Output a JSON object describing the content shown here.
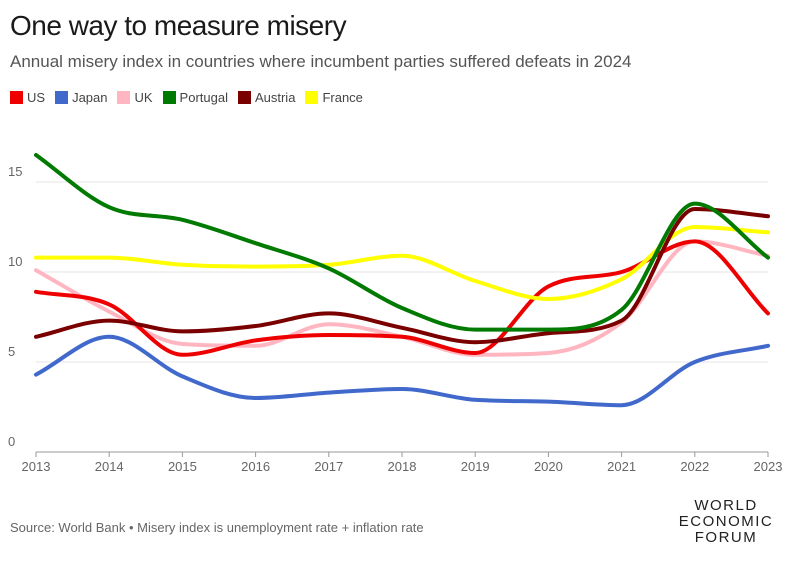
{
  "chart_data": {
    "type": "line",
    "title": "One way to measure misery",
    "subtitle": "Annual misery index in countries where incumbent parties suffered defeats in 2024",
    "x": [
      2013,
      2014,
      2015,
      2016,
      2017,
      2018,
      2019,
      2020,
      2021,
      2022,
      2023
    ],
    "x_tick_labels": [
      "2013",
      "2014",
      "2015",
      "2016",
      "2017",
      "2018",
      "2019",
      "2020",
      "2021",
      "2022",
      "2023"
    ],
    "y_tick_labels": [
      "0",
      "5",
      "10",
      "15"
    ],
    "y_ticks": [
      0,
      5,
      10,
      15
    ],
    "ylim": [
      0,
      17
    ],
    "grid": true,
    "legend_position": "top-left",
    "series": [
      {
        "name": "US",
        "color": "#ee0000",
        "values": [
          8.9,
          8.2,
          5.4,
          6.2,
          6.5,
          6.4,
          5.5,
          9.2,
          10.0,
          11.7,
          7.7
        ]
      },
      {
        "name": "Japan",
        "color": "#4169cc",
        "values": [
          4.3,
          6.4,
          4.2,
          3.0,
          3.3,
          3.5,
          2.9,
          2.8,
          2.6,
          5.0,
          5.9
        ]
      },
      {
        "name": "UK",
        "color": "#ffb6c1",
        "values": [
          10.1,
          7.8,
          6.0,
          5.9,
          7.1,
          6.4,
          5.4,
          5.5,
          7.2,
          11.7,
          10.9
        ]
      },
      {
        "name": "Portugal",
        "color": "#007a00",
        "values": [
          16.5,
          13.6,
          12.9,
          11.6,
          10.2,
          8.0,
          6.8,
          6.8,
          7.9,
          13.8,
          10.8
        ]
      },
      {
        "name": "Austria",
        "color": "#7a0000",
        "values": [
          6.4,
          7.3,
          6.7,
          7.0,
          7.7,
          6.9,
          6.1,
          6.6,
          7.3,
          13.5,
          13.1
        ]
      },
      {
        "name": "France",
        "color": "#ffff00",
        "values": [
          10.8,
          10.8,
          10.4,
          10.3,
          10.4,
          10.9,
          9.5,
          8.5,
          9.6,
          12.5,
          12.2
        ]
      }
    ]
  },
  "footer": {
    "source": "Source: World Bank • Misery index is unemployment rate + inflation rate"
  },
  "logo": {
    "line1": "WORLD",
    "line2": "ECONOMIC",
    "line3": "FORUM"
  }
}
